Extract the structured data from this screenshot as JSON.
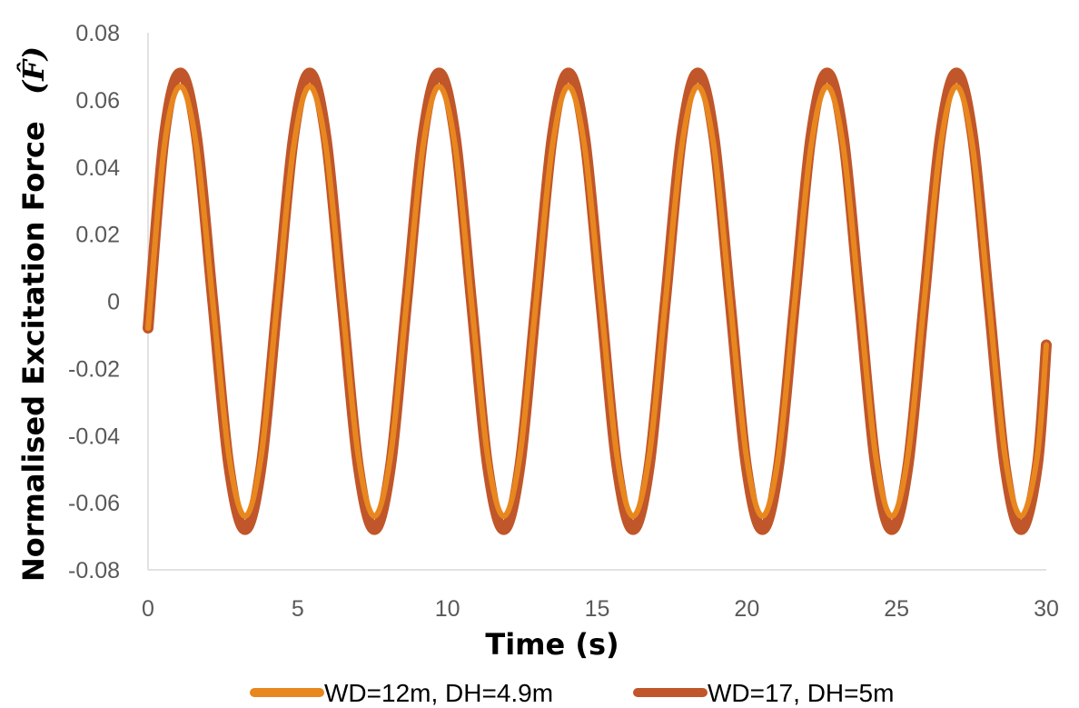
{
  "chart_data": {
    "type": "line",
    "xlabel": "Time (s)",
    "ylabel_text": "Normalised Excitation Force",
    "ylabel_symbol": "(F̂)",
    "xlim": [
      0,
      30
    ],
    "ylim": [
      -0.08,
      0.08
    ],
    "x_ticks": [
      "0",
      "5",
      "10",
      "15",
      "20",
      "25",
      "30"
    ],
    "y_ticks": [
      "0.08",
      "0.06",
      "0.04",
      "0.02",
      "0",
      "-0.02",
      "-0.04",
      "-0.06",
      "-0.08"
    ],
    "grid": false,
    "legend_position": "bottom",
    "series": [
      {
        "name": "WD=12m, DH=4.9m",
        "color": "#E8871E",
        "x": [
          0,
          0.54,
          1.08,
          1.62,
          2.16,
          2.7,
          3.24,
          3.78,
          4.32,
          4.86,
          5.4,
          5.94,
          6.48,
          7.02,
          7.56,
          8.1,
          8.64,
          9.18,
          9.72,
          10.26,
          10.8,
          11.34,
          11.88,
          12.42,
          12.96,
          13.5,
          14.04,
          14.58,
          15.12,
          15.66,
          16.2,
          16.74,
          17.28,
          17.82,
          18.36,
          18.9,
          19.44,
          19.98,
          20.52,
          21.06,
          21.6,
          22.14,
          22.68,
          23.22,
          23.76,
          24.3,
          24.84,
          25.38,
          25.92,
          26.46,
          27.0,
          27.54,
          28.08,
          28.62,
          29.16,
          29.7,
          30.0
        ],
        "y": [
          -0.008,
          0.046,
          0.064,
          0.046,
          0.0,
          -0.046,
          -0.064,
          -0.046,
          0.0,
          0.046,
          0.064,
          0.046,
          0.0,
          -0.046,
          -0.064,
          -0.046,
          0.0,
          0.046,
          0.064,
          0.046,
          0.0,
          -0.046,
          -0.064,
          -0.046,
          0.0,
          0.046,
          0.064,
          0.046,
          0.0,
          -0.046,
          -0.064,
          -0.046,
          0.0,
          0.046,
          0.064,
          0.046,
          0.0,
          -0.046,
          -0.064,
          -0.046,
          0.0,
          0.046,
          0.064,
          0.046,
          0.0,
          -0.046,
          -0.064,
          -0.046,
          0.0,
          0.046,
          0.064,
          0.046,
          0.0,
          -0.046,
          -0.064,
          -0.046,
          -0.013
        ]
      },
      {
        "name": "WD=17, DH=5m",
        "color": "#C0562A",
        "x": [
          0,
          0.54,
          1.08,
          1.62,
          2.16,
          2.7,
          3.24,
          3.78,
          4.32,
          4.86,
          5.4,
          5.94,
          6.48,
          7.02,
          7.56,
          8.1,
          8.64,
          9.18,
          9.72,
          10.26,
          10.8,
          11.34,
          11.88,
          12.42,
          12.96,
          13.5,
          14.04,
          14.58,
          15.12,
          15.66,
          16.2,
          16.74,
          17.28,
          17.82,
          18.36,
          18.9,
          19.44,
          19.98,
          20.52,
          21.06,
          21.6,
          22.14,
          22.68,
          23.22,
          23.76,
          24.3,
          24.84,
          25.38,
          25.92,
          26.46,
          27.0,
          27.54,
          28.08,
          28.62,
          29.16,
          29.7,
          30.0
        ],
        "y": [
          -0.008,
          0.049,
          0.068,
          0.049,
          0.0,
          -0.049,
          -0.068,
          -0.049,
          0.0,
          0.049,
          0.068,
          0.049,
          0.0,
          -0.049,
          -0.068,
          -0.049,
          0.0,
          0.049,
          0.068,
          0.049,
          0.0,
          -0.049,
          -0.068,
          -0.049,
          0.0,
          0.049,
          0.068,
          0.049,
          0.0,
          -0.049,
          -0.068,
          -0.049,
          0.0,
          0.049,
          0.068,
          0.049,
          0.0,
          -0.049,
          -0.068,
          -0.049,
          0.0,
          0.049,
          0.068,
          0.049,
          0.0,
          -0.049,
          -0.068,
          -0.049,
          0.0,
          0.049,
          0.068,
          0.049,
          0.0,
          -0.049,
          -0.068,
          -0.049,
          -0.013
        ]
      }
    ]
  }
}
